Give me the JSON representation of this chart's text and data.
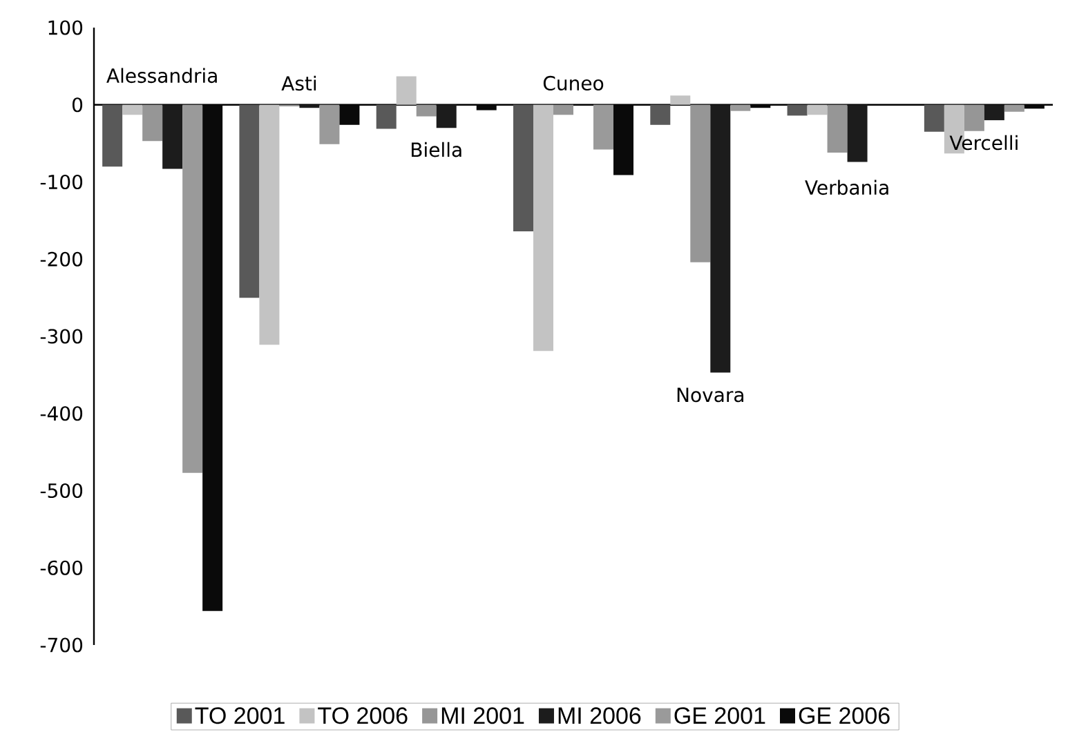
{
  "chart_data": {
    "type": "bar",
    "categories": [
      "Alessandria",
      "Asti",
      "Biella",
      "Cuneo",
      "Novara",
      "Verbania",
      "Vercelli"
    ],
    "series": [
      {
        "name": "TO 2001",
        "color": "#595959",
        "values": [
          -80,
          -250,
          -31,
          -164,
          -26,
          -14,
          -35
        ]
      },
      {
        "name": "TO 2006",
        "color": "#c3c3c3",
        "values": [
          -13,
          -311,
          37,
          -319,
          12,
          -13,
          -63
        ]
      },
      {
        "name": "MI 2001",
        "color": "#969696",
        "values": [
          -47,
          -2,
          -15,
          -13,
          -204,
          -62,
          -34
        ]
      },
      {
        "name": "MI 2006",
        "color": "#1c1c1c",
        "values": [
          -83,
          -4,
          -30,
          0,
          -347,
          -74,
          -20
        ]
      },
      {
        "name": "GE 2001",
        "color": "#9a9a9a",
        "values": [
          -477,
          -51,
          0,
          -58,
          -8,
          0,
          -9
        ]
      },
      {
        "name": "GE 2006",
        "color": "#0a0a0a",
        "values": [
          -656,
          -26,
          -7,
          -91,
          -4,
          0,
          -5
        ]
      }
    ],
    "ylim": [
      -700,
      100
    ],
    "yticks": [
      -700,
      -600,
      -500,
      -400,
      -300,
      -200,
      -100,
      0,
      100
    ],
    "grid": false,
    "legend": "bottom"
  }
}
